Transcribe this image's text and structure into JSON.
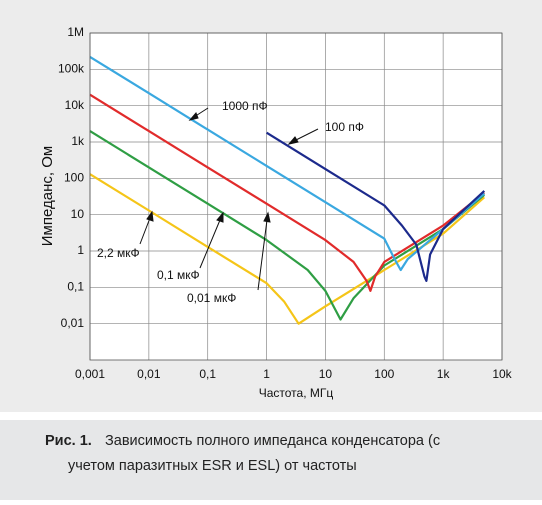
{
  "chart_data": {
    "type": "line",
    "xlabel": "Частота, МГц",
    "ylabel": "Импеданс, Ом",
    "log_x": true,
    "log_y": true,
    "grid": true,
    "xlim": [
      0.001,
      10000
    ],
    "ylim": [
      0.001,
      1000000
    ],
    "xticks": [
      {
        "value": 0.001,
        "label": "0,001"
      },
      {
        "value": 0.01,
        "label": "0,01"
      },
      {
        "value": 0.1,
        "label": "0,1"
      },
      1,
      10,
      100,
      {
        "value": 1000,
        "label": "1k"
      },
      {
        "value": 10000,
        "label": "10k"
      }
    ],
    "yticks": [
      {
        "value": 0.01,
        "label": "0,01"
      },
      {
        "value": 0.1,
        "label": "0,1"
      },
      1,
      10,
      100,
      {
        "value": 1000,
        "label": "1k"
      },
      {
        "value": 10000,
        "label": "10k"
      },
      {
        "value": 100000,
        "label": "100k"
      },
      {
        "value": 1000000,
        "label": "1M"
      }
    ],
    "series": [
      {
        "name": "2,2 мкФ",
        "color": "#f5c518",
        "x": [
          0.001,
          0.01,
          0.1,
          1,
          2,
          3.5,
          10,
          100,
          1000,
          5000
        ],
        "values": [
          130,
          13,
          1.3,
          0.13,
          0.04,
          0.01,
          0.03,
          0.3,
          3,
          30
        ]
      },
      {
        "name": "0,1 мкФ",
        "color": "#2f9e44",
        "x": [
          0.001,
          0.01,
          0.1,
          1,
          5,
          10,
          18,
          30,
          100,
          1000,
          5000
        ],
        "values": [
          2000,
          200,
          20,
          2,
          0.3,
          0.08,
          0.013,
          0.05,
          0.4,
          4,
          35
        ]
      },
      {
        "name": "0,01 мкФ",
        "color": "#e12b2b",
        "x": [
          0.001,
          0.01,
          0.1,
          1,
          10,
          30,
          50,
          58,
          70,
          100,
          1000,
          5000
        ],
        "values": [
          20000,
          2000,
          200,
          20,
          2,
          0.5,
          0.15,
          0.08,
          0.2,
          0.5,
          5,
          40
        ]
      },
      {
        "name": "1000 пФ",
        "color": "#3aa8e0",
        "x": [
          0.001,
          0.01,
          0.1,
          1,
          10,
          100,
          150,
          190,
          250,
          1000,
          5000
        ],
        "values": [
          220000,
          22000,
          2200,
          220,
          22,
          2.2,
          0.6,
          0.3,
          0.6,
          4,
          38
        ]
      },
      {
        "name": "100 пФ",
        "color": "#1c2a8c",
        "x": [
          1,
          10,
          100,
          200,
          350,
          480,
          520,
          600,
          1000,
          5000
        ],
        "values": [
          1800,
          180,
          18,
          5,
          1.5,
          0.2,
          0.15,
          0.8,
          4,
          45
        ]
      }
    ]
  },
  "caption": {
    "label": "Рис. 1.",
    "lines": [
      "Зависимость полного импеданса конденсатора (с",
      "учетом паразитных ESR и ESL) от частоты"
    ]
  }
}
